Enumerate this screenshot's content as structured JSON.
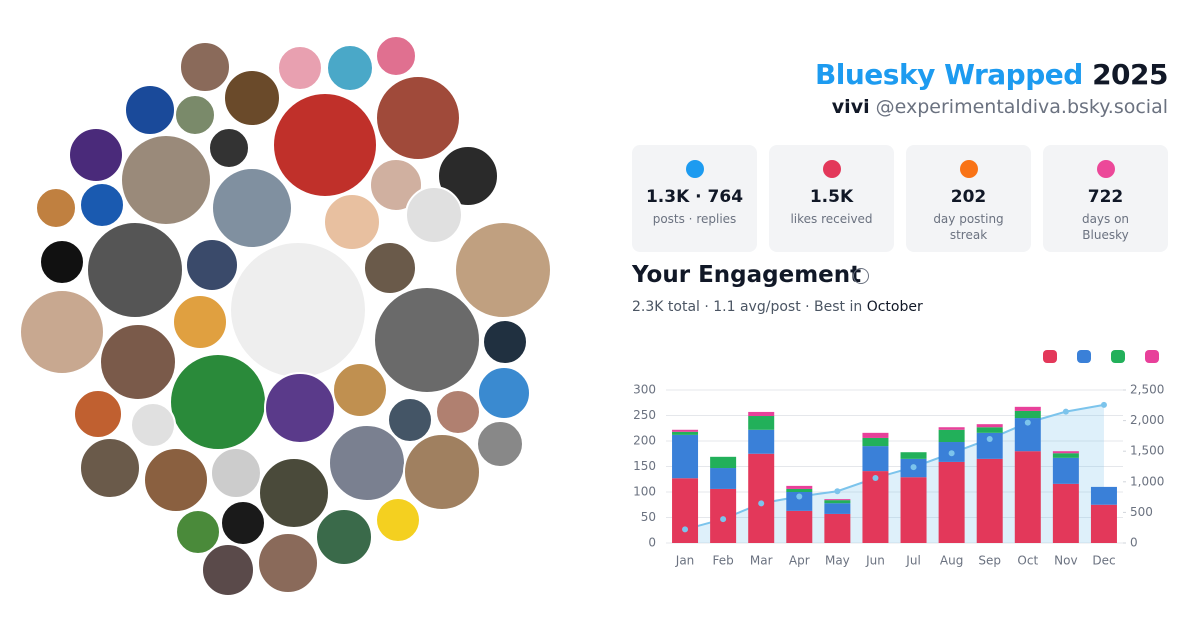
{
  "header": {
    "title": "Bluesky Wrapped",
    "year": "2025",
    "name": "vivi",
    "handle": "@experimentaldiva.bsky.social"
  },
  "stats": [
    {
      "value": "1.3K · 764",
      "label": "posts · replies"
    },
    {
      "value": "1.5K",
      "label": "likes received"
    },
    {
      "value": "202",
      "label": "day posting streak"
    },
    {
      "value": "722",
      "label": "days on Bluesky"
    }
  ],
  "engagement": {
    "title": "Your Engagement",
    "summary": "2.3K total · 1.1 avg/post · Best in",
    "best": "October"
  },
  "chart_data": {
    "type": "bar",
    "stacked": true,
    "categories": [
      "Jan",
      "Feb",
      "Mar",
      "Apr",
      "May",
      "Jun",
      "Jul",
      "Aug",
      "Sep",
      "Oct",
      "Nov",
      "Dec"
    ],
    "series": [
      {
        "color": "#e3385a",
        "values": [
          127,
          106,
          175,
          63,
          57,
          141,
          129,
          159,
          165,
          180,
          116,
          75
        ]
      },
      {
        "color": "#3a80d8",
        "values": [
          85,
          41,
          47,
          37,
          21,
          49,
          36,
          39,
          51,
          65,
          51,
          35
        ]
      },
      {
        "color": "#22b05a",
        "values": [
          6,
          22,
          27,
          6,
          6,
          16,
          13,
          24,
          11,
          14,
          9,
          0
        ]
      },
      {
        "color": "#e8409a",
        "values": [
          4,
          0,
          8,
          6,
          2,
          10,
          0,
          5,
          6,
          8,
          4,
          0
        ]
      },
      {
        "type": "area",
        "axis": "y2",
        "color": "#7cc4ec",
        "values": [
          222,
          391,
          648,
          760,
          846,
          1062,
          1240,
          1467,
          1700,
          1967,
          2147,
          2257
        ]
      }
    ],
    "ylim": [
      0,
      300
    ],
    "yticks": [
      0,
      50,
      100,
      150,
      200,
      250,
      300
    ],
    "y2lim": [
      0,
      2500
    ],
    "y2ticks": [
      0,
      500,
      {
        "value": 1000,
        "label": "1,000"
      },
      {
        "value": 1500,
        "label": "1,500"
      },
      {
        "value": 2000,
        "label": "2,000"
      },
      {
        "value": 2500,
        "label": "2,500"
      }
    ],
    "grid": true
  }
}
